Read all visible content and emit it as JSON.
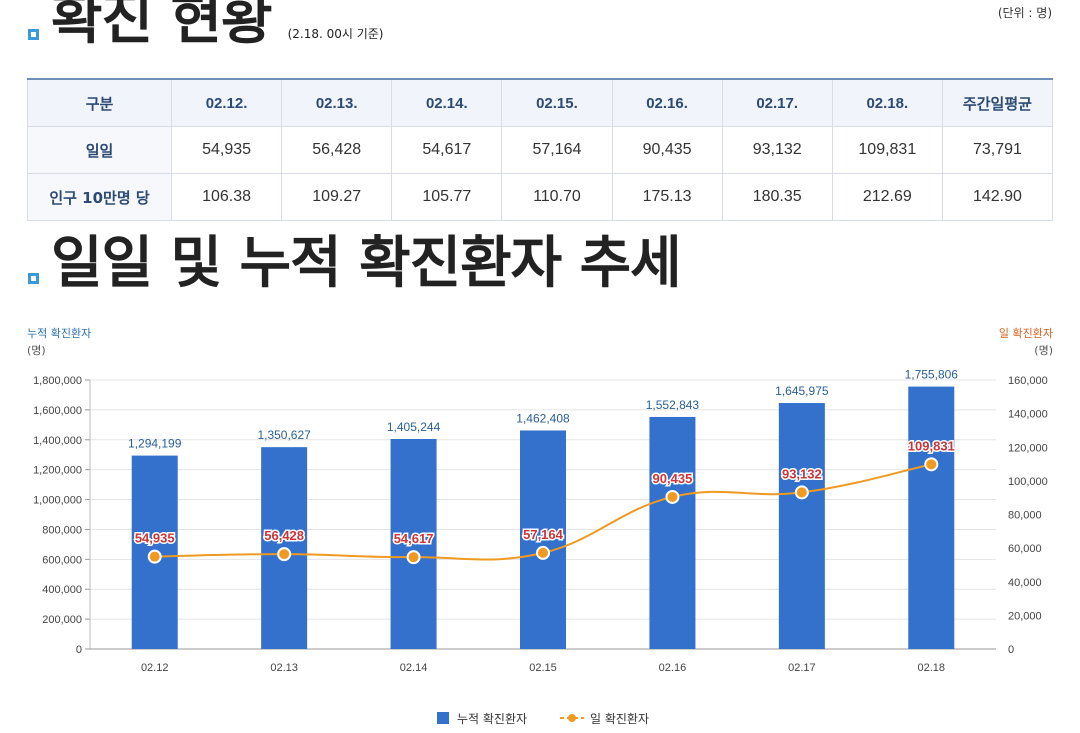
{
  "header": {
    "title": "확진 현황",
    "note": "(2.18. 00시 기준)",
    "unit": "(단위 : 명)"
  },
  "table": {
    "columns": [
      "구분",
      "02.12.",
      "02.13.",
      "02.14.",
      "02.15.",
      "02.16.",
      "02.17.",
      "02.18.",
      "주간일평균"
    ],
    "rows": [
      {
        "label": "일일",
        "values": [
          "54,935",
          "56,428",
          "54,617",
          "57,164",
          "90,435",
          "93,132",
          "109,831",
          "73,791"
        ]
      },
      {
        "label": "인구 10만명 당",
        "values": [
          "106.38",
          "109.27",
          "105.77",
          "110.70",
          "175.13",
          "180.35",
          "212.69",
          "142.90"
        ]
      }
    ]
  },
  "section2": {
    "title": "일일 및 누적 확진환자 추세"
  },
  "chart_data": {
    "type": "bar",
    "title": "",
    "categories": [
      "02.12",
      "02.13",
      "02.14",
      "02.15",
      "02.16",
      "02.17",
      "02.18"
    ],
    "series": [
      {
        "name": "누적 확진환자",
        "type": "bar",
        "axis": "left",
        "color": "#3371cc",
        "values": [
          1294199,
          1350627,
          1405244,
          1462408,
          1552843,
          1645975,
          1755806
        ],
        "labels": [
          "1,294,199",
          "1,350,627",
          "1,405,244",
          "1,462,408",
          "1,552,843",
          "1,645,975",
          "1,755,806"
        ]
      },
      {
        "name": "일 확진환자",
        "type": "line",
        "axis": "right",
        "color": "#f09a22",
        "values": [
          54935,
          56428,
          54617,
          57164,
          90435,
          93132,
          109831
        ],
        "labels": [
          "54,935",
          "56,428",
          "54,617",
          "57,164",
          "90,435",
          "93,132",
          "109,831"
        ]
      }
    ],
    "y_left": {
      "label": "누적 확진환자",
      "unit": "(명)",
      "range": [
        0,
        1800000
      ],
      "ticks": [
        "0",
        "200,000",
        "400,000",
        "600,000",
        "800,000",
        "1,000,000",
        "1,200,000",
        "1,400,000",
        "1,600,000",
        "1,800,000"
      ]
    },
    "y_right": {
      "label": "일 확진환자",
      "unit": "(명)",
      "range": [
        0,
        160000
      ],
      "ticks": [
        "0",
        "20,000",
        "40,000",
        "60,000",
        "80,000",
        "100,000",
        "120,000",
        "140,000",
        "160,000"
      ]
    },
    "grid": true,
    "legend": "bottom",
    "colors": {
      "left_axis_label": "#2a6fb0",
      "right_axis_label": "#d9601c",
      "bar_label": "#2a5e95",
      "line_label": "#c8363a"
    }
  }
}
